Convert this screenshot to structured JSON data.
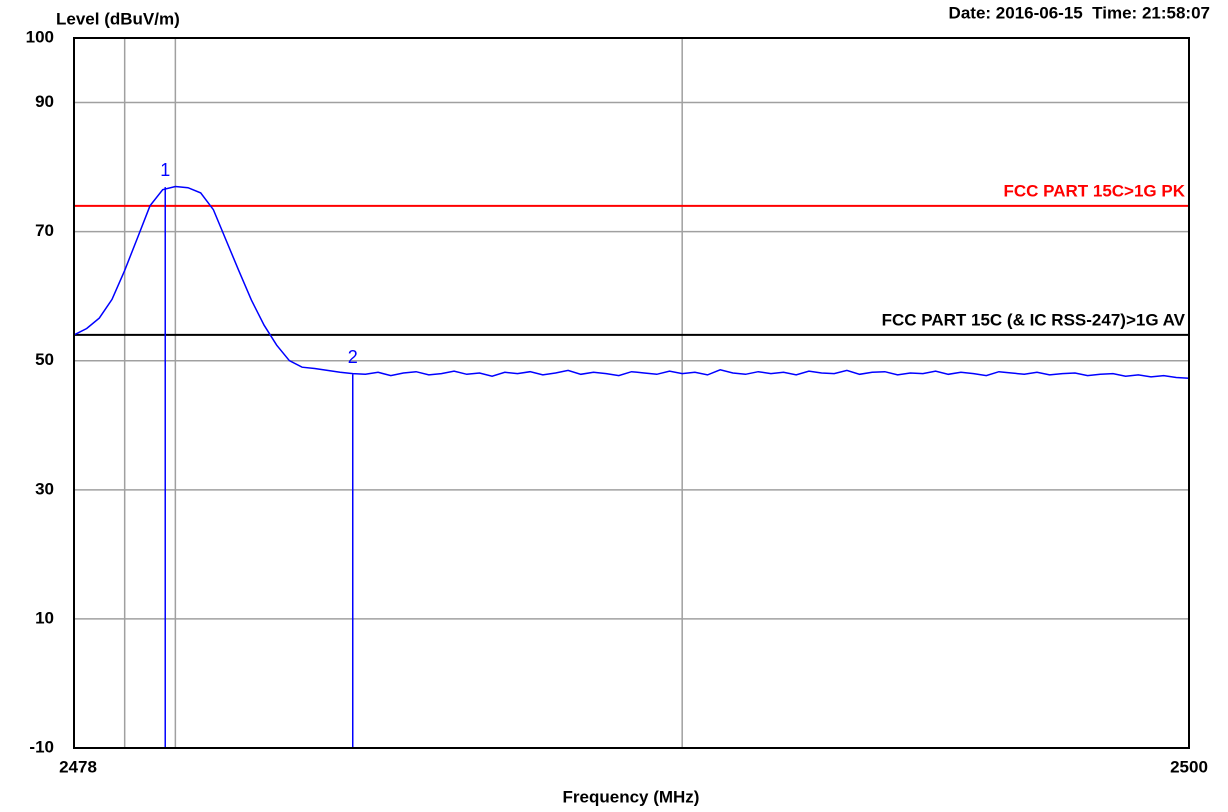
{
  "chart_data": {
    "type": "line",
    "title": "Date: 2016-06-15  Time: 21:58:07",
    "ylabel": "Level (dBuV/m)",
    "xlabel": "Frequency (MHz)",
    "xlim": [
      2478,
      2500
    ],
    "ylim": [
      -10,
      100
    ],
    "xticks": [
      2478,
      2500
    ],
    "yticks": [
      -10,
      10,
      30,
      50,
      70,
      90,
      100
    ],
    "xgrid": [
      2479,
      2480,
      2490
    ],
    "grid": true,
    "color": "#0000ff",
    "x": [
      2478,
      2478.25,
      2478.5,
      2478.75,
      2479,
      2479.25,
      2479.5,
      2479.75,
      2480,
      2480.25,
      2480.5,
      2480.75,
      2481,
      2481.25,
      2481.5,
      2481.75,
      2482,
      2482.25,
      2482.5,
      2482.75,
      2483,
      2483.25,
      2483.5,
      2483.75,
      2484,
      2484.25,
      2484.5,
      2484.75,
      2485,
      2485.25,
      2485.5,
      2485.75,
      2486,
      2486.25,
      2486.5,
      2486.75,
      2487,
      2487.25,
      2487.5,
      2487.75,
      2488,
      2488.25,
      2488.5,
      2488.75,
      2489,
      2489.25,
      2489.5,
      2489.75,
      2490,
      2490.25,
      2490.5,
      2490.75,
      2491,
      2491.25,
      2491.5,
      2491.75,
      2492,
      2492.25,
      2492.5,
      2492.75,
      2493,
      2493.25,
      2493.5,
      2493.75,
      2494,
      2494.25,
      2494.5,
      2494.75,
      2495,
      2495.25,
      2495.5,
      2495.75,
      2496,
      2496.25,
      2496.5,
      2496.75,
      2497,
      2497.25,
      2497.5,
      2497.75,
      2498,
      2498.25,
      2498.5,
      2498.75,
      2499,
      2499.25,
      2499.5,
      2499.75,
      2500
    ],
    "values": [
      54,
      55,
      56.6,
      59.5,
      64,
      69,
      74,
      76.5,
      77,
      76.8,
      76,
      73.4,
      68.7,
      64,
      59.4,
      55.5,
      52.4,
      50,
      49,
      48.8,
      48.5,
      48.2,
      48.0,
      47.9,
      48.2,
      47.7,
      48.1,
      48.3,
      47.8,
      48.0,
      48.4,
      47.9,
      48.1,
      47.6,
      48.2,
      48.0,
      48.3,
      47.8,
      48.1,
      48.5,
      47.9,
      48.2,
      48.0,
      47.7,
      48.3,
      48.1,
      47.9,
      48.4,
      48.0,
      48.2,
      47.8,
      48.6,
      48.1,
      47.9,
      48.3,
      48.0,
      48.2,
      47.8,
      48.4,
      48.1,
      48.0,
      48.5,
      47.9,
      48.2,
      48.3,
      47.8,
      48.1,
      48.0,
      48.4,
      47.9,
      48.2,
      48.0,
      47.7,
      48.3,
      48.1,
      47.9,
      48.2,
      47.8,
      48.0,
      48.1,
      47.7,
      47.9,
      48.0,
      47.6,
      47.8,
      47.5,
      47.7,
      47.4,
      47.3
    ],
    "limits": [
      {
        "name": "FCC PART 15C>1G PK",
        "value": 74,
        "color": "#ff0000"
      },
      {
        "name": "FCC PART 15C (& IC RSS-247)>1G AV",
        "value": 54,
        "color": "#000000"
      }
    ],
    "markers": [
      {
        "label": "1",
        "x": 2479.8,
        "value": 76.9
      },
      {
        "label": "2",
        "x": 2483.5,
        "value": 47.9
      }
    ]
  }
}
